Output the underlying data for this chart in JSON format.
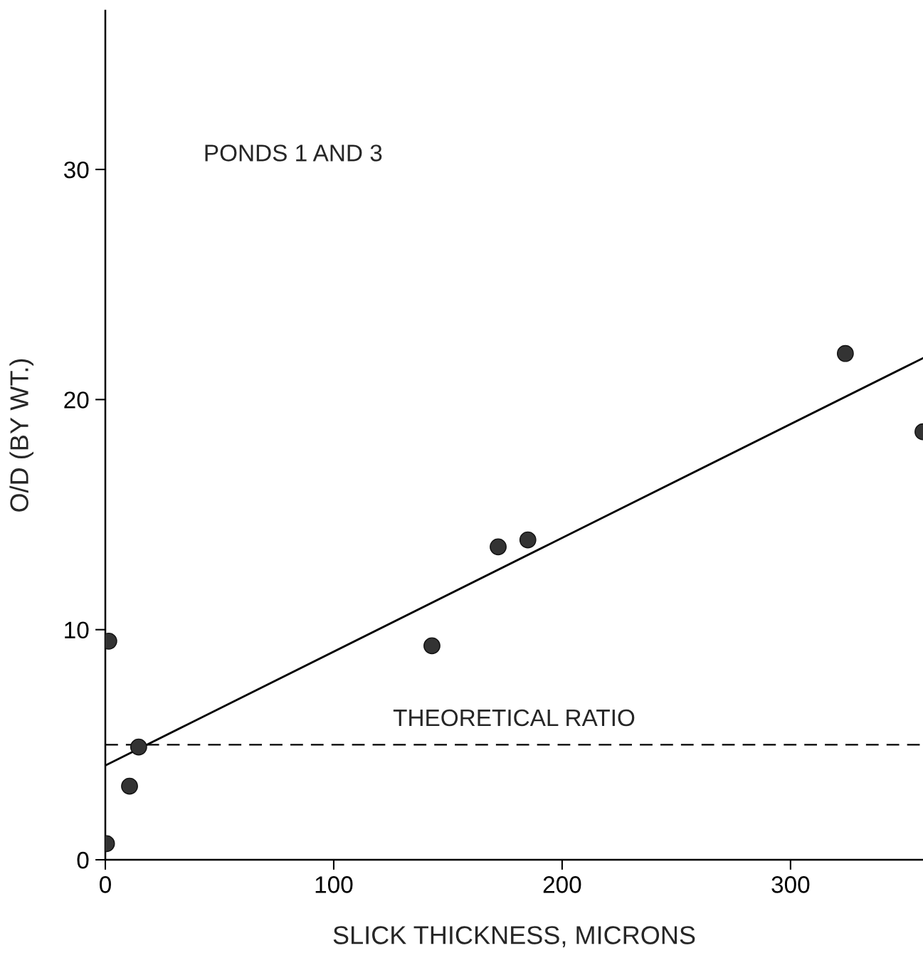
{
  "chart_data": {
    "type": "scatter",
    "xlabel": "SLICK THICKNESS, MICRONS",
    "ylabel": "O/D (BY WT.)",
    "annotations": [
      "PONDS 1 AND 3"
    ],
    "xlim": [
      0,
      358
    ],
    "ylim": [
      0,
      36.9
    ],
    "xticks": [
      0,
      100,
      200,
      300
    ],
    "yticks": [
      0,
      10,
      20,
      30
    ],
    "grid": false,
    "legend": false,
    "series": [
      {
        "color": "#333333",
        "marker": "circle",
        "x": [
          1.5,
          0.5,
          10.6,
          14.6,
          143,
          172,
          185,
          324,
          358
        ],
        "values": [
          9.5,
          0.7,
          3.2,
          4.9,
          9.3,
          13.6,
          13.9,
          22.0,
          18.6
        ]
      },
      {
        "type": "line",
        "color": "#000000",
        "x": [
          0,
          358
        ],
        "values": [
          4.1,
          21.8
        ],
        "line_style": "solid",
        "marker": "none"
      }
    ],
    "ref_lines": [
      {
        "axis": "y",
        "value": 5.0,
        "label": "THEORETICAL RATIO",
        "line_style": "dashed",
        "color": "#000000"
      }
    ]
  }
}
